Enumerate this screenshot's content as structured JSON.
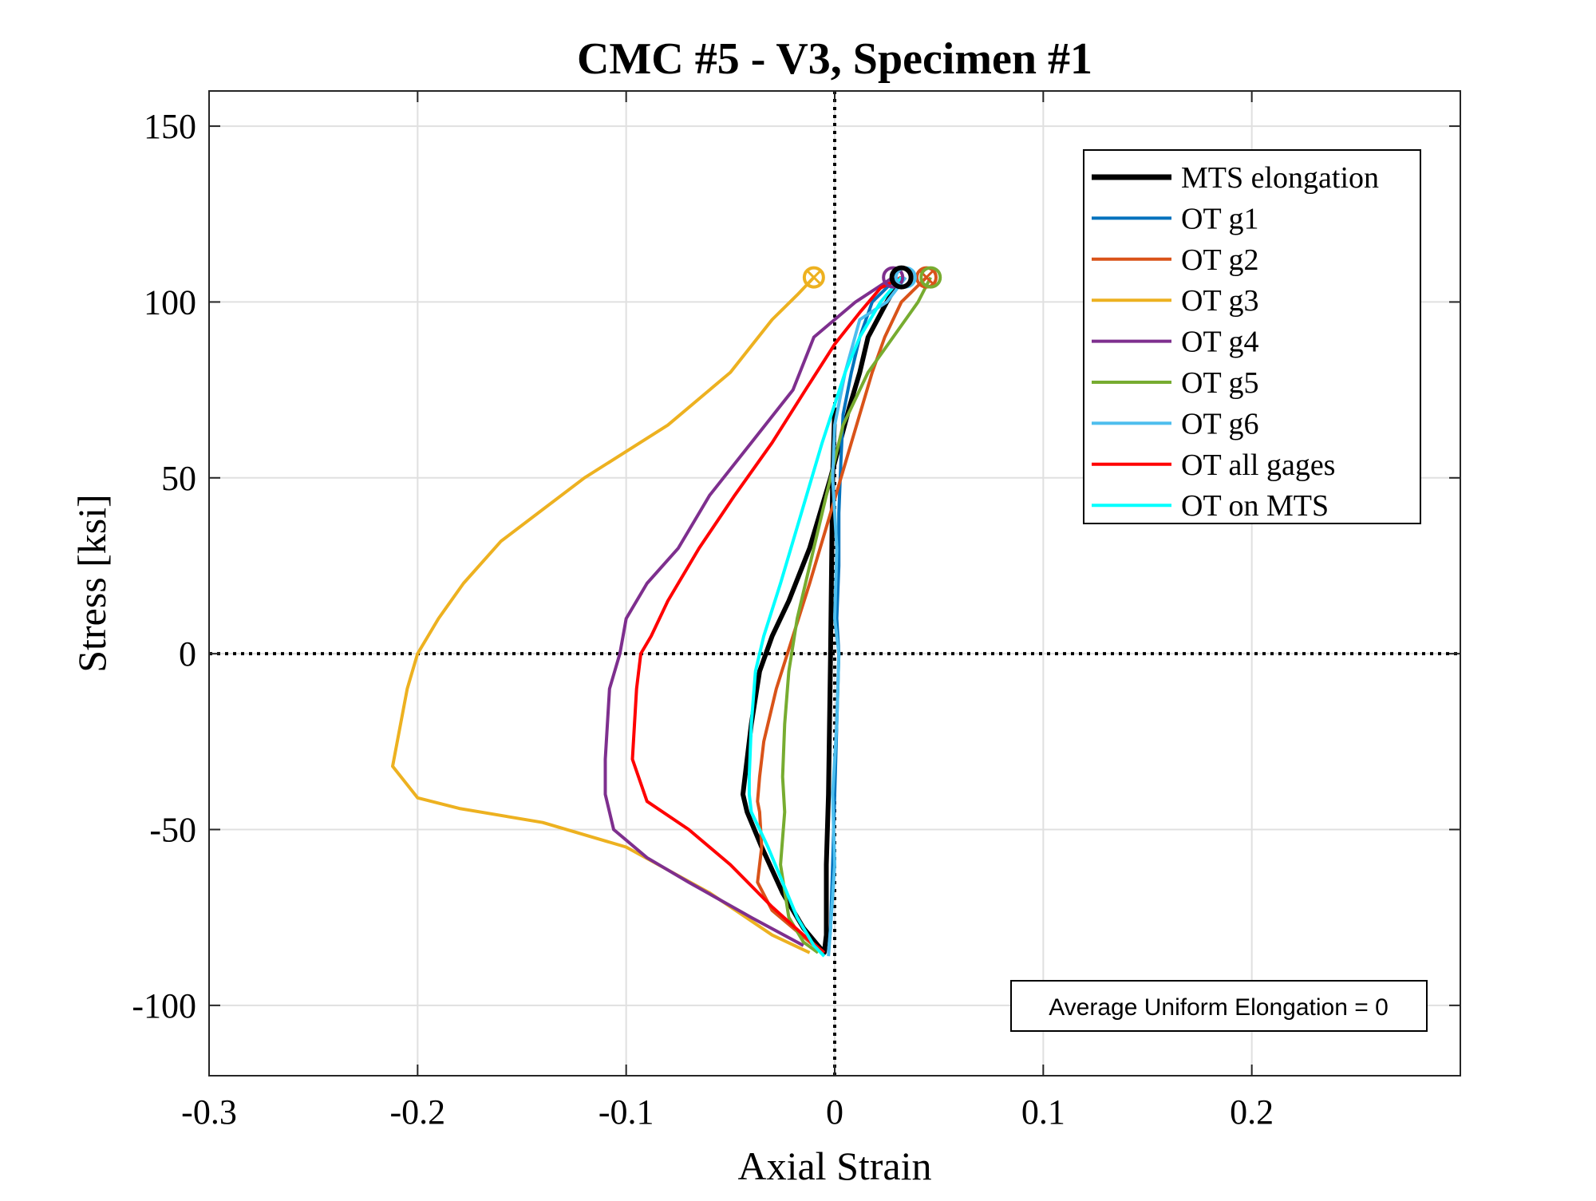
{
  "chart_data": {
    "type": "line",
    "title": "CMC #5 - V3, Specimen #1",
    "xlabel": "Axial Strain",
    "ylabel": "Stress [ksi]",
    "xlim": [
      -0.3,
      0.3
    ],
    "ylim": [
      -120,
      160
    ],
    "xticks": [
      -0.3,
      -0.2,
      -0.1,
      0,
      0.1,
      0.2
    ],
    "xtick_labels": [
      "-0.3",
      "-0.2",
      "-0.1",
      "0",
      "0.1",
      "0.2"
    ],
    "yticks": [
      -100,
      -50,
      0,
      50,
      100,
      150
    ],
    "ytick_labels": [
      "-100",
      "-50",
      "0",
      "50",
      "100",
      "150"
    ],
    "grid": true,
    "reference_lines": [
      "x = 0 (dotted)",
      "y = 0 (dotted)"
    ],
    "legend_position": "top-right",
    "annotation": "Average Uniform Elongation = 0",
    "series": [
      {
        "name": "MTS elongation",
        "color": "#000000",
        "x": [
          0.032,
          0.025,
          0.016,
          0.012,
          0.007,
          -0.002,
          -0.012,
          -0.022,
          -0.03,
          -0.036,
          -0.04,
          -0.043,
          -0.044,
          -0.042,
          -0.035,
          -0.025,
          -0.015,
          -0.008,
          -0.005,
          -0.004,
          -0.004,
          -0.003,
          -0.002,
          -0.001,
          0
        ],
        "y": [
          107,
          100,
          90,
          80,
          70,
          50,
          30,
          15,
          5,
          -5,
          -20,
          -35,
          -40,
          -45,
          -55,
          -68,
          -78,
          -83,
          -85,
          -80,
          -60,
          -40,
          0,
          50,
          70
        ]
      },
      {
        "name": "OT g1",
        "color": "#0072BD",
        "x": [
          0.03,
          0.018,
          0.012,
          0.008,
          0.004,
          0.003,
          0.002,
          0.002,
          0.001,
          0.002,
          0.001,
          0,
          -0.001,
          -0.002,
          -0.003
        ],
        "y": [
          107,
          100,
          90,
          80,
          68,
          55,
          40,
          25,
          10,
          0,
          -20,
          -40,
          -60,
          -78,
          -85
        ]
      },
      {
        "name": "OT g2",
        "color": "#D95319",
        "x": [
          0.044,
          0.032,
          0.024,
          0.018,
          0.008,
          -0.002,
          -0.012,
          -0.02,
          -0.028,
          -0.034,
          -0.036,
          -0.037,
          -0.036,
          -0.035,
          -0.037,
          -0.03,
          -0.02,
          -0.012,
          -0.006
        ],
        "y": [
          107,
          100,
          90,
          80,
          60,
          40,
          20,
          5,
          -10,
          -25,
          -35,
          -42,
          -45,
          -55,
          -65,
          -73,
          -78,
          -82,
          -85
        ]
      },
      {
        "name": "OT g3",
        "color": "#EDB120",
        "x": [
          -0.01,
          -0.018,
          -0.03,
          -0.05,
          -0.08,
          -0.12,
          -0.16,
          -0.178,
          -0.19,
          -0.2,
          -0.205,
          -0.212,
          -0.2,
          -0.18,
          -0.14,
          -0.1,
          -0.06,
          -0.03,
          -0.012
        ],
        "y": [
          107,
          102,
          95,
          80,
          65,
          50,
          32,
          20,
          10,
          0,
          -10,
          -32,
          -41,
          -44,
          -48,
          -55,
          -68,
          -80,
          -85
        ]
      },
      {
        "name": "OT g4",
        "color": "#7E2F8E",
        "x": [
          0.028,
          0.01,
          -0.01,
          -0.02,
          -0.04,
          -0.06,
          -0.075,
          -0.09,
          -0.1,
          -0.103,
          -0.108,
          -0.11,
          -0.11,
          -0.106,
          -0.09,
          -0.07,
          -0.04,
          -0.015
        ],
        "y": [
          107,
          100,
          90,
          75,
          60,
          45,
          30,
          20,
          10,
          0,
          -10,
          -30,
          -40,
          -50,
          -58,
          -65,
          -75,
          -83
        ]
      },
      {
        "name": "OT g5",
        "color": "#77AC30",
        "x": [
          0.046,
          0.04,
          0.028,
          0.016,
          0.004,
          -0.004,
          -0.012,
          -0.018,
          -0.022,
          -0.024,
          -0.025,
          -0.024,
          -0.026,
          -0.022,
          -0.015,
          -0.008
        ],
        "y": [
          107,
          100,
          90,
          80,
          65,
          45,
          25,
          10,
          -5,
          -20,
          -35,
          -45,
          -60,
          -75,
          -82,
          -85
        ]
      },
      {
        "name": "OT g6",
        "color": "#4DBEEE",
        "x": [
          0.034,
          0.025,
          0.012,
          0.005,
          0.0,
          -0.001,
          0.001,
          0.0,
          0.002,
          0.001,
          -0.001,
          0.0,
          -0.002,
          -0.003
        ],
        "y": [
          107,
          100,
          95,
          80,
          65,
          50,
          30,
          10,
          0,
          -20,
          -40,
          -60,
          -78,
          -86
        ]
      },
      {
        "name": "OT all gages",
        "color": "#FF0000",
        "x": [
          0.032,
          0.022,
          0.012,
          0.0,
          -0.014,
          -0.03,
          -0.048,
          -0.065,
          -0.08,
          -0.088,
          -0.093,
          -0.095,
          -0.097,
          -0.09,
          -0.07,
          -0.05,
          -0.03,
          -0.015,
          -0.005
        ],
        "y": [
          107,
          104,
          97,
          88,
          75,
          60,
          45,
          30,
          15,
          5,
          0,
          -10,
          -30,
          -42,
          -50,
          -60,
          -72,
          -80,
          -85
        ]
      },
      {
        "name": "OT on MTS",
        "color": "#00FFFF",
        "x": [
          0.032,
          0.022,
          0.012,
          0.005,
          -0.006,
          -0.016,
          -0.026,
          -0.034,
          -0.038,
          -0.04,
          -0.041,
          -0.041,
          -0.04,
          -0.032,
          -0.025,
          -0.018,
          -0.01,
          -0.005
        ],
        "y": [
          107,
          100,
          90,
          80,
          60,
          40,
          20,
          5,
          -5,
          -20,
          -35,
          -40,
          -45,
          -55,
          -65,
          -75,
          -83,
          -86
        ]
      }
    ],
    "failure_markers": [
      {
        "series": "OT g3",
        "x": -0.01,
        "y": 107,
        "symbol": "circle-x"
      },
      {
        "series": "OT g2",
        "x": 0.044,
        "y": 107,
        "symbol": "circle-x"
      },
      {
        "series": "OT g5",
        "x": 0.046,
        "y": 107,
        "symbol": "circle"
      },
      {
        "series": "OT g4",
        "x": 0.028,
        "y": 107,
        "symbol": "circle"
      },
      {
        "series": "OT g6",
        "x": 0.034,
        "y": 107,
        "symbol": "circle"
      },
      {
        "series": "MTS elongation",
        "x": 0.032,
        "y": 107,
        "symbol": "circle"
      }
    ]
  }
}
